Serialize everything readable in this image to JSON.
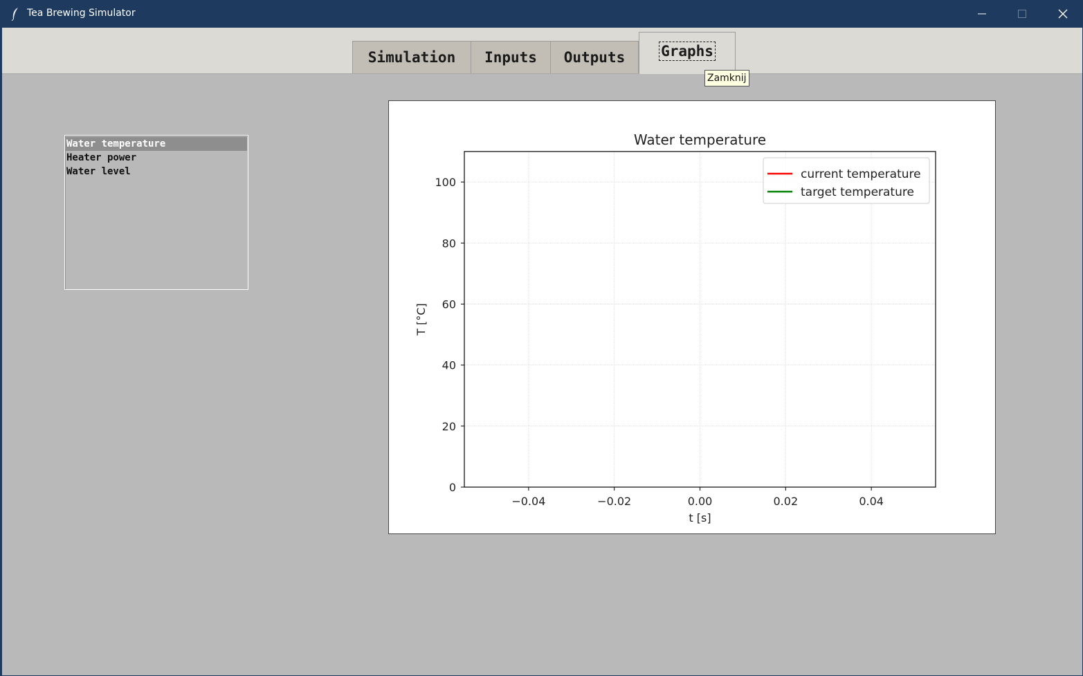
{
  "window": {
    "title": "Tea Brewing Simulator"
  },
  "tabs": [
    {
      "label": "Simulation"
    },
    {
      "label": "Inputs"
    },
    {
      "label": "Outputs"
    },
    {
      "label": "Graphs",
      "active": true
    }
  ],
  "tooltip": {
    "text": "Zamknij"
  },
  "graph_list": {
    "items": [
      "Water temperature",
      "Heater power",
      "Water level"
    ],
    "selected": "Water temperature"
  },
  "chart_data": {
    "type": "line",
    "title": "Water temperature",
    "xlabel": "t [s]",
    "ylabel": "T [°C]",
    "xlim": [
      -0.055,
      0.055
    ],
    "ylim": [
      0,
      110
    ],
    "xticks": [
      -0.04,
      -0.02,
      0.0,
      0.02,
      0.04
    ],
    "xtick_labels": [
      "−0.04",
      "−0.02",
      "0.00",
      "0.02",
      "0.04"
    ],
    "yticks": [
      0,
      20,
      40,
      60,
      80,
      100
    ],
    "ytick_labels": [
      "0",
      "20",
      "40",
      "60",
      "80",
      "100"
    ],
    "grid": true,
    "legend_position": "upper right",
    "series": [
      {
        "name": "current temperature",
        "color": "#ff0000",
        "x": [],
        "y": []
      },
      {
        "name": "target temperature",
        "color": "#008000",
        "x": [],
        "y": []
      }
    ]
  }
}
